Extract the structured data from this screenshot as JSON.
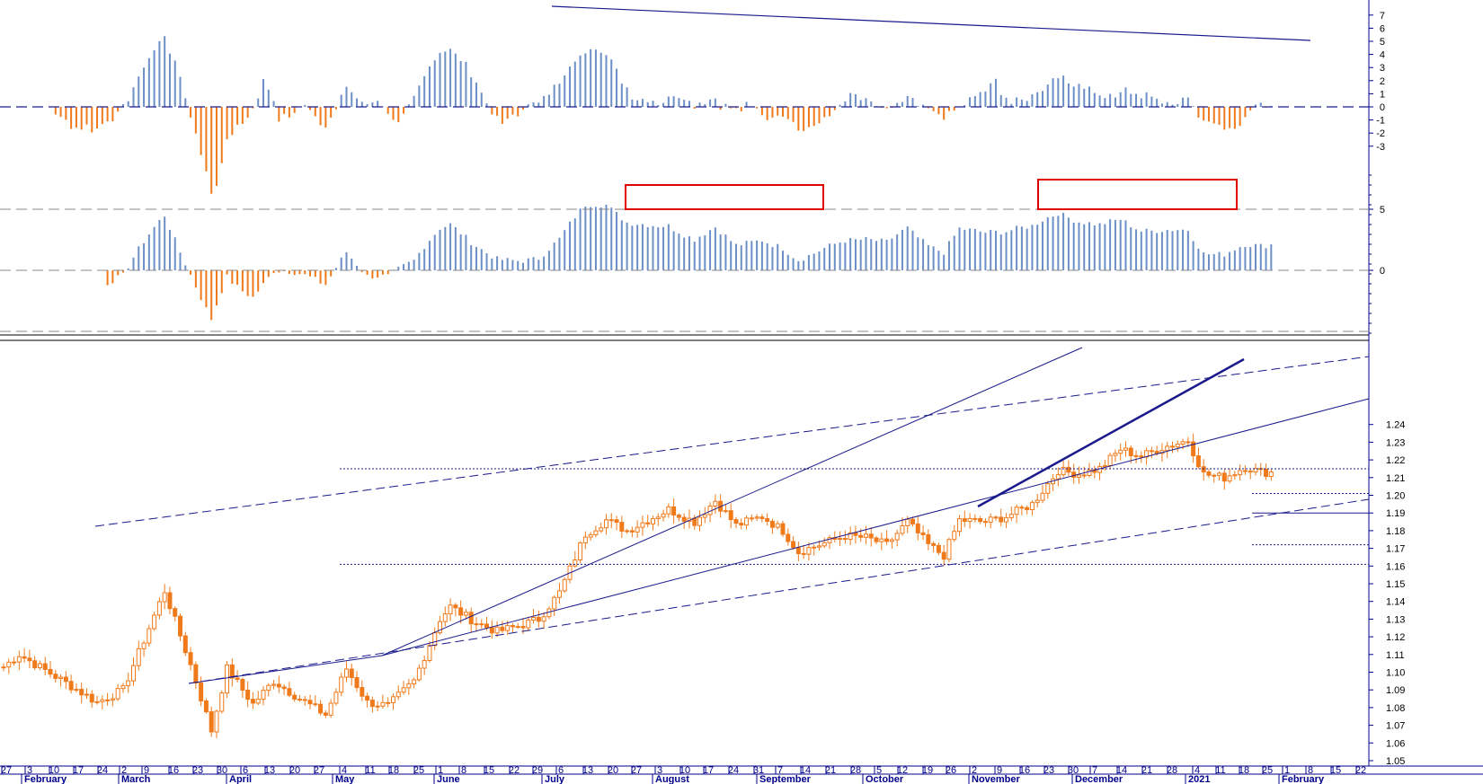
{
  "chart_data": [
    {
      "type": "bar",
      "panel": "momentum",
      "y_ticks": [
        7,
        6,
        5,
        4,
        3,
        2,
        1,
        0,
        -1,
        -2,
        -3
      ],
      "ylim": [
        -5,
        8
      ],
      "colors": {
        "positive": "#6b8fc6",
        "negative": "#f07a1a",
        "trendline": "#1a1a8c"
      },
      "zero_line": "dashed"
    },
    {
      "type": "bar",
      "panel": "oscillator",
      "y_ticks": [
        5,
        0
      ],
      "ylim": [
        -5,
        10
      ],
      "reference_line": 5,
      "highlight_boxes": 2,
      "colors": {
        "positive": "#6b8fc6",
        "negative": "#f07a1a",
        "box": "#e00000"
      }
    },
    {
      "type": "candlestick",
      "panel": "price",
      "y_ticks": [
        1.24,
        1.23,
        1.22,
        1.21,
        1.2,
        1.19,
        1.18,
        1.17,
        1.16,
        1.15,
        1.14,
        1.13,
        1.12,
        1.11,
        1.1,
        1.09,
        1.08,
        1.07,
        1.06,
        1.05
      ],
      "ylim": [
        1.05,
        1.245
      ],
      "x_day_ticks": [
        "27",
        "3",
        "10",
        "17",
        "24",
        "2",
        "9",
        "16",
        "23",
        "30",
        "6",
        "13",
        "20",
        "27",
        "4",
        "11",
        "18",
        "25",
        "1",
        "8",
        "15",
        "22",
        "29",
        "6",
        "13",
        "20",
        "27",
        "3",
        "10",
        "17",
        "24",
        "31",
        "7",
        "14",
        "21",
        "28",
        "5",
        "12",
        "19",
        "26",
        "2",
        "9",
        "16",
        "23",
        "30",
        "7",
        "14",
        "21",
        "28",
        "4",
        "11",
        "18",
        "25",
        "1",
        "8",
        "15",
        "22"
      ],
      "x_month_labels": [
        "February",
        "March",
        "April",
        "May",
        "June",
        "July",
        "August",
        "September",
        "October",
        "November",
        "December",
        "2021",
        "February"
      ],
      "anchors": [
        {
          "d": 0,
          "p": 1.103
        },
        {
          "d": 3,
          "p": 1.11
        },
        {
          "d": 12,
          "p": 1.094
        },
        {
          "d": 18,
          "p": 1.083
        },
        {
          "d": 23,
          "p": 1.09
        },
        {
          "d": 28,
          "p": 1.125
        },
        {
          "d": 31,
          "p": 1.146
        },
        {
          "d": 36,
          "p": 1.104
        },
        {
          "d": 40,
          "p": 1.067
        },
        {
          "d": 43,
          "p": 1.102
        },
        {
          "d": 48,
          "p": 1.082
        },
        {
          "d": 52,
          "p": 1.095
        },
        {
          "d": 57,
          "p": 1.085
        },
        {
          "d": 62,
          "p": 1.076
        },
        {
          "d": 66,
          "p": 1.102
        },
        {
          "d": 70,
          "p": 1.083
        },
        {
          "d": 74,
          "p": 1.081
        },
        {
          "d": 79,
          "p": 1.095
        },
        {
          "d": 84,
          "p": 1.13
        },
        {
          "d": 86,
          "p": 1.137
        },
        {
          "d": 91,
          "p": 1.128
        },
        {
          "d": 95,
          "p": 1.123
        },
        {
          "d": 99,
          "p": 1.126
        },
        {
          "d": 103,
          "p": 1.13
        },
        {
          "d": 107,
          "p": 1.145
        },
        {
          "d": 112,
          "p": 1.178
        },
        {
          "d": 116,
          "p": 1.186
        },
        {
          "d": 120,
          "p": 1.18
        },
        {
          "d": 124,
          "p": 1.186
        },
        {
          "d": 128,
          "p": 1.192
        },
        {
          "d": 133,
          "p": 1.185
        },
        {
          "d": 137,
          "p": 1.197
        },
        {
          "d": 141,
          "p": 1.183
        },
        {
          "d": 146,
          "p": 1.188
        },
        {
          "d": 150,
          "p": 1.18
        },
        {
          "d": 153,
          "p": 1.168
        },
        {
          "d": 157,
          "p": 1.172
        },
        {
          "d": 162,
          "p": 1.177
        },
        {
          "d": 166,
          "p": 1.176
        },
        {
          "d": 170,
          "p": 1.172
        },
        {
          "d": 174,
          "p": 1.185
        },
        {
          "d": 178,
          "p": 1.172
        },
        {
          "d": 181,
          "p": 1.166
        },
        {
          "d": 184,
          "p": 1.186
        },
        {
          "d": 189,
          "p": 1.185
        },
        {
          "d": 193,
          "p": 1.188
        },
        {
          "d": 198,
          "p": 1.195
        },
        {
          "d": 203,
          "p": 1.214
        },
        {
          "d": 207,
          "p": 1.212
        },
        {
          "d": 211,
          "p": 1.215
        },
        {
          "d": 215,
          "p": 1.226
        },
        {
          "d": 219,
          "p": 1.222
        },
        {
          "d": 223,
          "p": 1.227
        },
        {
          "d": 228,
          "p": 1.231
        },
        {
          "d": 231,
          "p": 1.212
        },
        {
          "d": 235,
          "p": 1.21
        },
        {
          "d": 239,
          "p": 1.216
        },
        {
          "d": 242,
          "p": 1.213
        }
      ],
      "reference_levels": [
        1.215,
        1.201,
        1.19,
        1.172,
        1.161
      ]
    }
  ]
}
